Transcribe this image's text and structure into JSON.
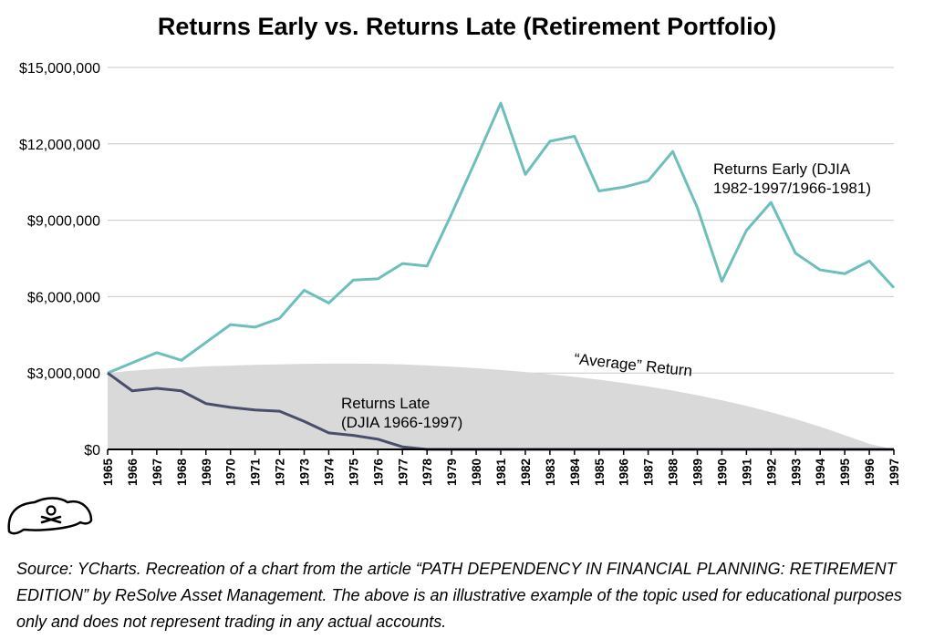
{
  "chart_data": {
    "type": "line",
    "title": "Returns Early vs. Returns Late (Retirement Portfolio)",
    "x": [
      1965,
      1966,
      1967,
      1968,
      1969,
      1970,
      1971,
      1972,
      1973,
      1974,
      1975,
      1976,
      1977,
      1978,
      1979,
      1980,
      1981,
      1982,
      1983,
      1984,
      1985,
      1986,
      1987,
      1988,
      1989,
      1990,
      1991,
      1992,
      1993,
      1994,
      1995,
      1996,
      1997
    ],
    "ylim": [
      0,
      15000000
    ],
    "yticks": [
      0,
      3000000,
      6000000,
      9000000,
      12000000,
      15000000
    ],
    "ytick_labels": [
      "$0",
      "$3,000,000",
      "$6,000,000",
      "$9,000,000",
      "$12,000,000",
      "$15,000,000"
    ],
    "grid": true,
    "series": [
      {
        "name": "Returns Early (DJIA 1982-1997/1966-1981)",
        "label_lines": [
          "Returns Early (DJIA",
          "1982-1997/1966-1981)"
        ],
        "color": "#6dbfbc",
        "values": [
          3000000,
          3400000,
          3800000,
          3500000,
          4200000,
          4900000,
          4800000,
          5150000,
          6250000,
          5750000,
          6650000,
          6700000,
          7300000,
          7200000,
          9250000,
          11400000,
          13600000,
          10800000,
          12100000,
          12300000,
          10150000,
          10300000,
          10550000,
          11700000,
          9500000,
          6600000,
          8600000,
          9700000,
          7700000,
          7050000,
          6900000,
          7400000,
          6350000
        ]
      },
      {
        "name": "Returns Late (DJIA 1966-1997)",
        "label_lines": [
          "Returns Late",
          "(DJIA 1966-1997)"
        ],
        "color": "#484e6b",
        "values": [
          3000000,
          2300000,
          2400000,
          2300000,
          1800000,
          1650000,
          1550000,
          1500000,
          1100000,
          650000,
          550000,
          400000,
          100000,
          0,
          0,
          0,
          0,
          0,
          0,
          0,
          0,
          0,
          0,
          0,
          0,
          0,
          0,
          0,
          0,
          0,
          0,
          0,
          0
        ]
      },
      {
        "name": "“Average” Return",
        "color": "#d9d9d9",
        "fill": true,
        "values": [
          3000000,
          3090000,
          3160000,
          3210000,
          3260000,
          3290000,
          3320000,
          3340000,
          3360000,
          3370000,
          3370000,
          3360000,
          3340000,
          3300000,
          3250000,
          3190000,
          3120000,
          3040000,
          2950000,
          2850000,
          2740000,
          2610000,
          2470000,
          2310000,
          2130000,
          1930000,
          1710000,
          1460000,
          1190000,
          890000,
          560000,
          220000,
          0
        ]
      }
    ]
  },
  "source_note": "Source: YCharts. Recreation of a chart from the article “PATH DEPENDENCY IN FINANCIAL PLANNING: RETIREMENT EDITION” by ReSolve Asset Management. The above is an illustrative example of the topic used for educational purposes only and does not represent trading in any actual accounts.",
  "logo": {
    "icon": "pirate-hat-icon"
  }
}
